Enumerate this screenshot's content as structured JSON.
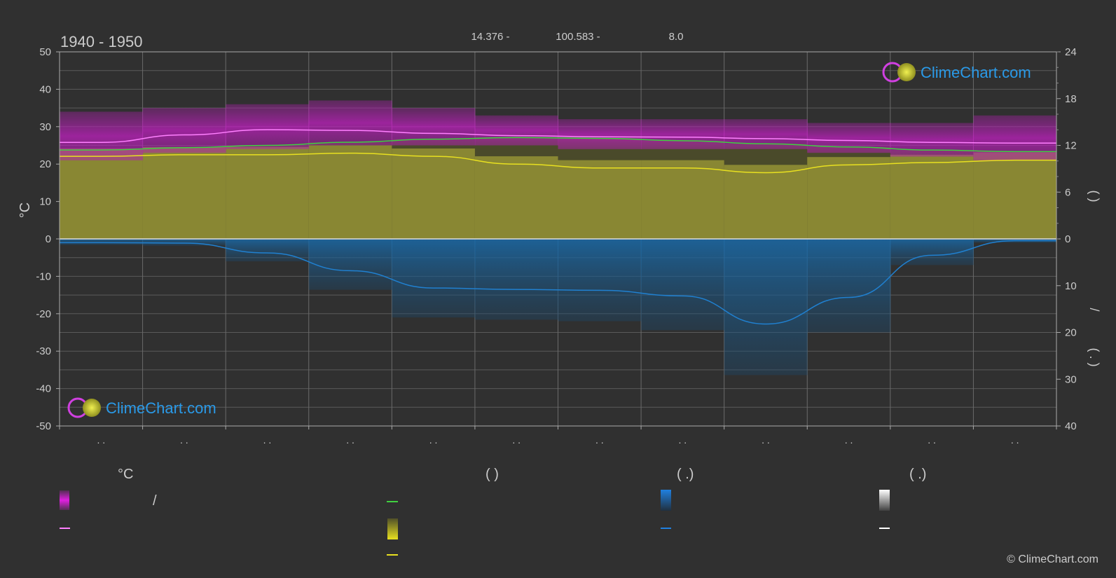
{
  "header": {
    "period": "1940 - 1950",
    "coord_lat": "14.376 -",
    "coord_lon": "100.583 -",
    "elevation": "8.0"
  },
  "watermark": {
    "brand": "ClimeChart.com",
    "copyright": "© ClimeChart.com"
  },
  "axes": {
    "left_unit": "°C",
    "left_ticks": [
      "50",
      "40",
      "30",
      "20",
      "10",
      "0",
      "-10",
      "-20",
      "-30",
      "-40",
      "-50"
    ],
    "right_ticks_upper": [
      "24",
      "18",
      "12",
      "6",
      "0"
    ],
    "right_ticks_lower": [
      "10",
      "20",
      "30",
      "40"
    ],
    "right_label_upper": "(    )",
    "right_label_slash": "/",
    "right_label_lower": "( . )",
    "month_labels": [
      ". .",
      ". .",
      ". .",
      ". .",
      ". .",
      ". .",
      ". .",
      ". .",
      ". .",
      ". .",
      ". .",
      ". ."
    ]
  },
  "legend": {
    "col1_header": "°C",
    "col1_slash": "/",
    "col2_header": "(          )",
    "col3_header": "(   .)",
    "col4_header": "(   .)"
  },
  "colors": {
    "background": "#303030",
    "grid": "#5a5a5a",
    "magenta": "#e020e0",
    "temp_line": "#ff80ff",
    "green": "#40d040",
    "yellow": "#e8e020",
    "blue": "#2080d0",
    "white": "#ffffff"
  },
  "chart_data": {
    "type": "area",
    "x_months": 12,
    "ylim_left": [
      -50,
      50
    ],
    "ylim_right_hours": [
      0,
      24
    ],
    "ylim_right_precip_mm": [
      0,
      40
    ],
    "grid": true,
    "series": [
      {
        "key": "temp_max_band",
        "values": [
          34,
          35,
          36,
          37,
          35,
          33,
          32,
          32,
          32,
          31,
          31,
          33
        ]
      },
      {
        "key": "temp_min_band",
        "values": [
          21,
          23,
          24,
          25,
          25,
          25,
          24,
          24,
          24,
          23,
          22,
          21
        ]
      },
      {
        "key": "temp_mean",
        "values": [
          25.8,
          27.8,
          29.2,
          29.0,
          28.2,
          27.6,
          27.3,
          27.2,
          26.8,
          26.3,
          25.8,
          25.6
        ]
      },
      {
        "key": "daylight_hours",
        "values": [
          11.4,
          11.7,
          12.0,
          12.4,
          12.8,
          13.0,
          12.9,
          12.6,
          12.2,
          11.8,
          11.4,
          11.2
        ]
      },
      {
        "key": "sunshine_hours",
        "values": [
          10.6,
          10.8,
          10.8,
          11.0,
          10.6,
          9.6,
          9.1,
          9.1,
          8.5,
          9.5,
          9.8,
          10.1
        ]
      },
      {
        "key": "precipitation_mm",
        "values": [
          0.8,
          0.9,
          3.0,
          6.8,
          10.5,
          10.8,
          11.0,
          12.2,
          18.2,
          12.5,
          3.5,
          0.4
        ]
      }
    ]
  }
}
